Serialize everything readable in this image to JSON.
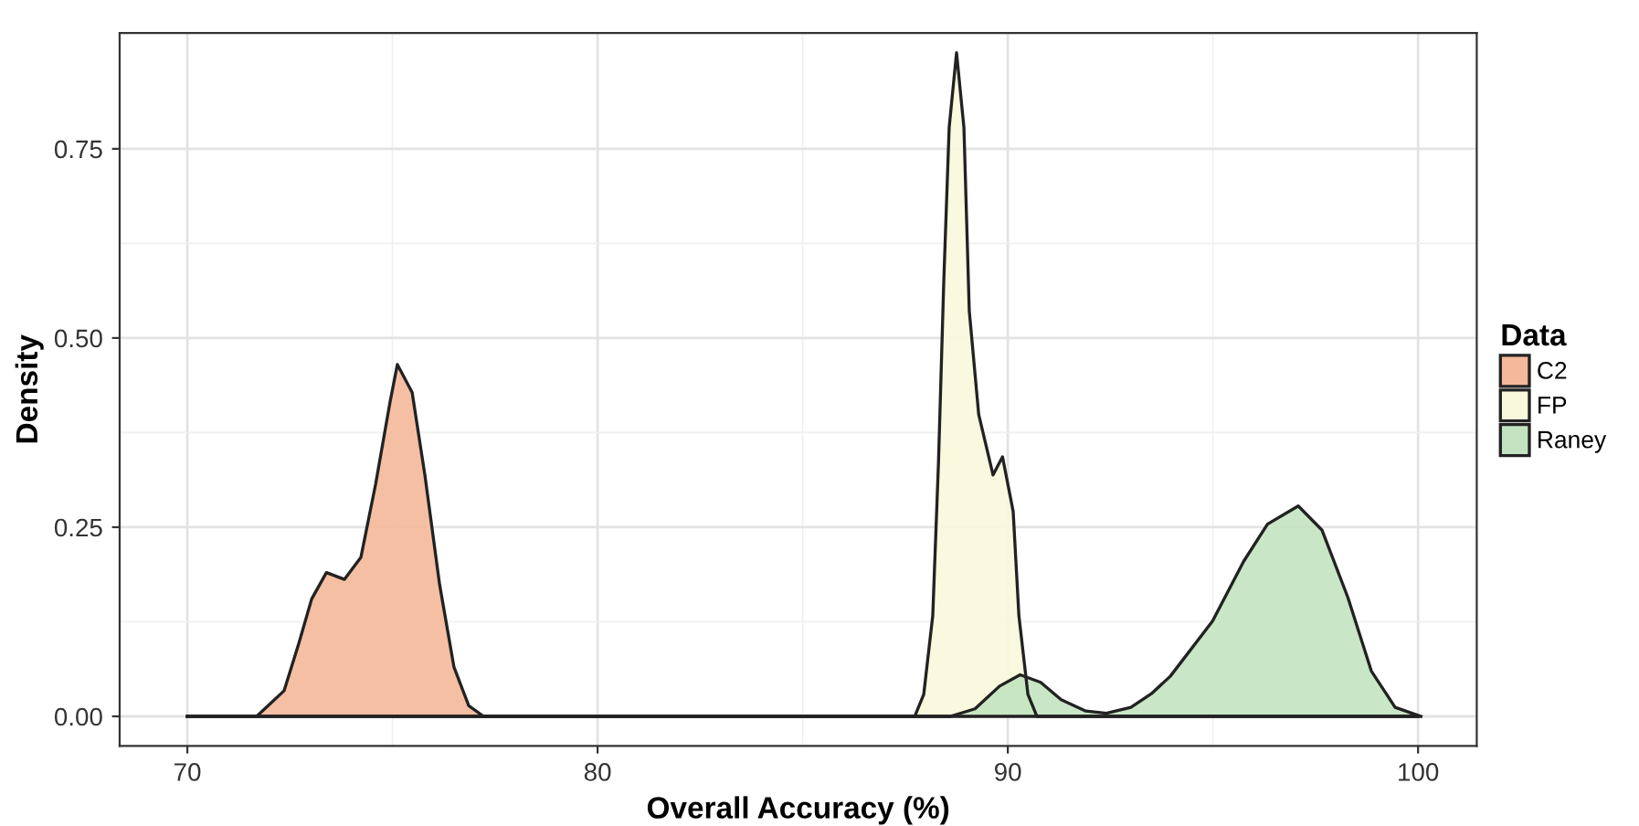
{
  "chart_data": {
    "type": "area",
    "xlabel": "Overall Accuracy (%)",
    "ylabel": "Density",
    "legend_title": "Data",
    "legend": "right",
    "grid": true,
    "xlim": [
      68.35,
      101.43
    ],
    "ylim": [
      -0.039,
      0.903
    ],
    "xticks": [
      70,
      80,
      90,
      100
    ],
    "yticks": [
      {
        "value": 0,
        "label": "0.00"
      },
      {
        "value": 0.25,
        "label": "0.25"
      },
      {
        "value": 0.5,
        "label": "0.50"
      },
      {
        "value": 0.75,
        "label": "0.75"
      }
    ],
    "series": [
      {
        "name": "C2",
        "color": "#f4b89a",
        "x": [
          70,
          71.69,
          72.36,
          72.72,
          73.03,
          73.39,
          73.83,
          74.23,
          74.59,
          74.94,
          75.12,
          75.48,
          75.79,
          76.15,
          76.5,
          76.86,
          77.22,
          100
        ],
        "values": [
          0,
          0,
          0.034,
          0.097,
          0.155,
          0.19,
          0.181,
          0.21,
          0.307,
          0.415,
          0.465,
          0.428,
          0.319,
          0.174,
          0.065,
          0.014,
          0,
          0
        ]
      },
      {
        "name": "FP",
        "color": "#f8f8dc",
        "x": [
          70,
          87.73,
          87.95,
          88.17,
          88.31,
          88.44,
          88.57,
          88.75,
          88.93,
          89.06,
          89.29,
          89.64,
          89.87,
          90.13,
          90.27,
          90.49,
          90.71,
          100
        ],
        "values": [
          0,
          0,
          0.029,
          0.133,
          0.336,
          0.577,
          0.778,
          0.877,
          0.778,
          0.536,
          0.399,
          0.319,
          0.343,
          0.271,
          0.133,
          0.029,
          0,
          0
        ]
      },
      {
        "name": "Raney",
        "color": "#c3e3c0",
        "x": [
          70,
          88.6,
          89.2,
          89.8,
          90.3,
          90.8,
          91.3,
          91.9,
          92.4,
          93.0,
          93.5,
          93.96,
          94.99,
          95.75,
          96.33,
          97.08,
          97.66,
          98.29,
          98.86,
          99.44,
          100.07
        ],
        "values": [
          0,
          0,
          0.01,
          0.04,
          0.055,
          0.045,
          0.022,
          0.007,
          0.004,
          0.012,
          0.03,
          0.053,
          0.126,
          0.205,
          0.254,
          0.278,
          0.246,
          0.157,
          0.06,
          0.012,
          0
        ]
      }
    ]
  }
}
